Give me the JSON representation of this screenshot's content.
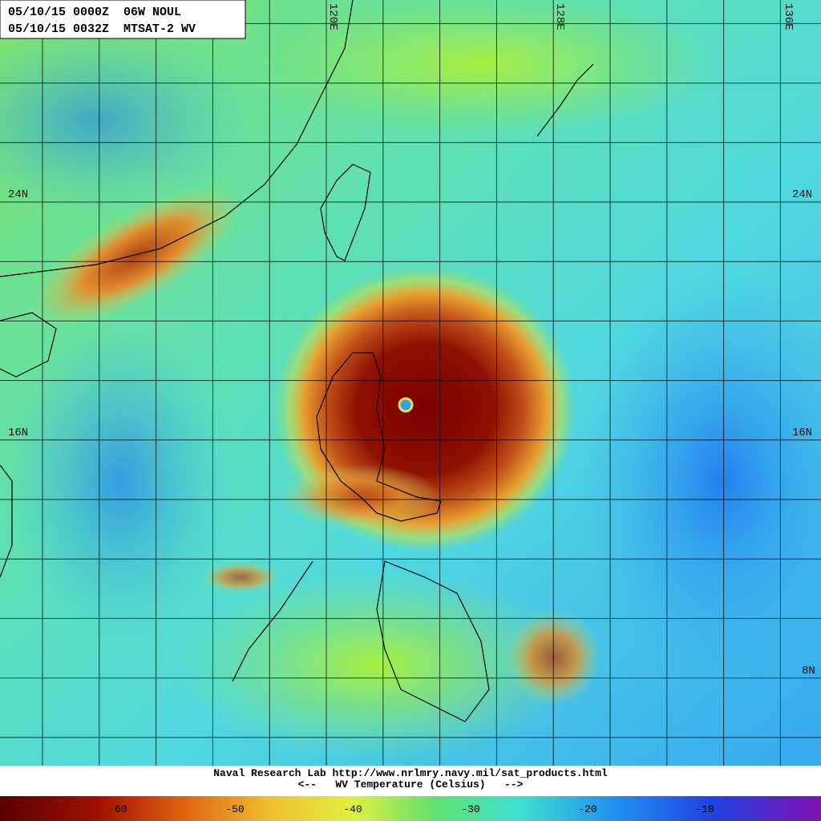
{
  "header": {
    "lines": [
      "05/10/15 0000Z  06W NOUL",
      "05/10/15 0032Z  MTSAT-2 WV"
    ]
  },
  "grid_labels": {
    "longitude": [
      "120E",
      "128E",
      "136E"
    ],
    "latitude": [
      "24N",
      "16N",
      "8N"
    ]
  },
  "footer": {
    "lines": [
      "Naval Research Lab http://www.nrlmry.navy.mil/sat_products.html",
      "<--   WV Temperature (Celsius)   -->"
    ]
  },
  "colorbar": {
    "labels": [
      "-60",
      "-50",
      "-40",
      "-30",
      "-20",
      "-10"
    ]
  }
}
